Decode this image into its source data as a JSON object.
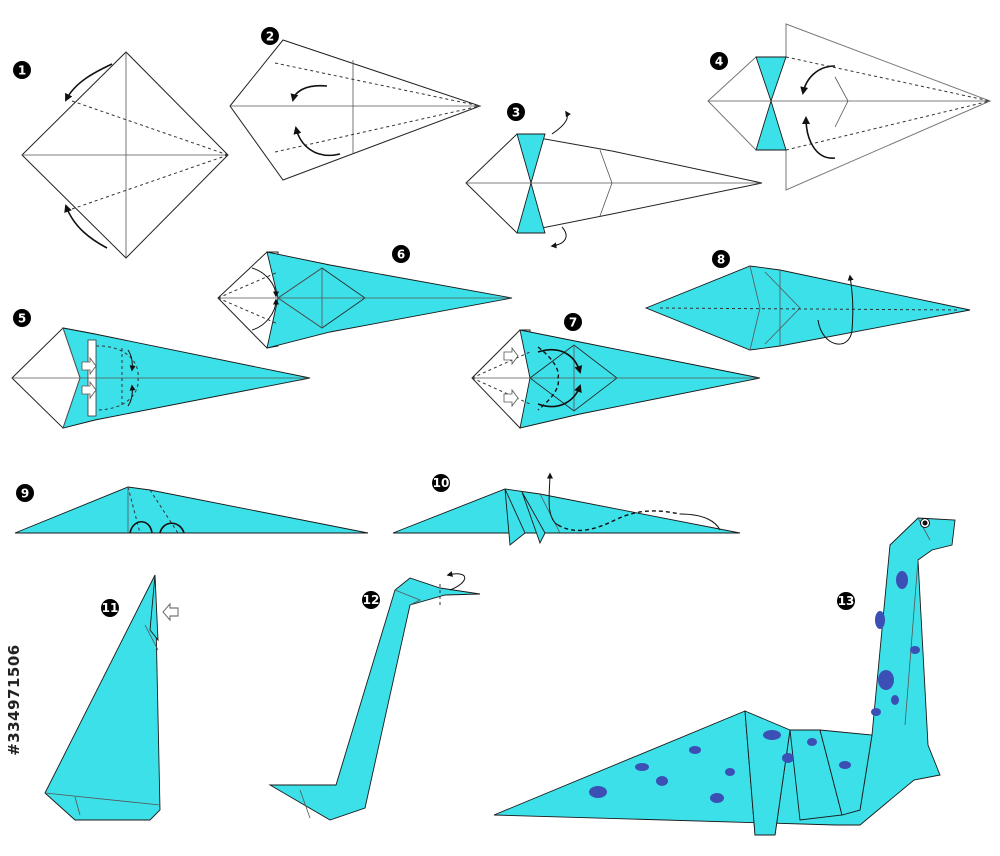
{
  "colors": {
    "paper_front": "#ffffff",
    "paper_back": "#3ce0e8",
    "spots": "#3c4fb4",
    "outline": "#222222"
  },
  "steps": [
    {
      "label": "1"
    },
    {
      "label": "2"
    },
    {
      "label": "3"
    },
    {
      "label": "4"
    },
    {
      "label": "5"
    },
    {
      "label": "6"
    },
    {
      "label": "7"
    },
    {
      "label": "8"
    },
    {
      "label": "9"
    },
    {
      "label": "10"
    },
    {
      "label": "11"
    },
    {
      "label": "12"
    },
    {
      "label": "13"
    }
  ],
  "side_text": "#334971506",
  "icons": {
    "fold_arrow": "curved-arrow-icon",
    "push_arrow": "outline-push-arrow-icon",
    "eye": "dinosaur-eye-icon"
  }
}
